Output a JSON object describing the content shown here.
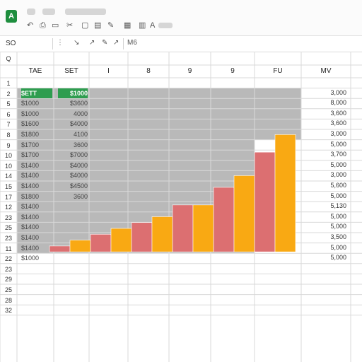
{
  "app": {
    "icon_letter": "A"
  },
  "toolbar": {
    "icons": [
      "undo-icon",
      "print-icon",
      "paint-format-icon",
      "cut-icon",
      "copy-icon",
      "paste-icon",
      "pencil-icon",
      "grid-icon",
      "chart-icon",
      "text-icon"
    ]
  },
  "formula_bar": {
    "name_box": "SO",
    "content": "M6"
  },
  "columns": [
    "TAE",
    "SET",
    "I",
    "8",
    "9",
    "9",
    "FU",
    "MV"
  ],
  "rows": [
    "1",
    "2",
    "5",
    "6",
    "7",
    "8",
    "9",
    "10",
    "10",
    "14",
    "15",
    "17",
    "12",
    "23",
    "25",
    "23",
    "11",
    "22",
    "23",
    "29",
    "25",
    "28",
    "32"
  ],
  "row_zero_label": "Q",
  "col_a": [
    "$ETT",
    "$1000",
    "$1000",
    "$1600",
    "$1800",
    "$1700",
    "$1700",
    "$1400",
    "$1400",
    "$1400",
    "$1800",
    "$1400",
    "$1400",
    "$1400",
    "$1400",
    "$1400",
    "$1000"
  ],
  "col_b": [
    "$1000",
    "$3600",
    "4000",
    "$4000",
    "4100",
    "3600",
    "$7000",
    "$4000",
    "$4000",
    "$4500",
    "3600"
  ],
  "right_values": [
    "3,000",
    "8,000",
    "3,600",
    "3,600",
    "3,000",
    "5,000",
    "3,700",
    "5,000",
    "3,000",
    "5,600",
    "5,000",
    "5,130",
    "5,000",
    "5,000",
    "3,500",
    "5,000",
    "5,000"
  ],
  "colors": {
    "shaded": "#b9b9b9",
    "bar_orange": "#f9a913",
    "bar_red": "#dc6f71",
    "active_cell": "#2e9d4f"
  },
  "chart_data": {
    "type": "bar",
    "values": [
      1,
      2,
      3,
      4,
      5,
      6,
      8,
      8,
      11,
      13,
      17,
      20
    ],
    "colors": [
      "red",
      "orange",
      "red",
      "orange",
      "red",
      "orange",
      "red",
      "orange",
      "red",
      "orange",
      "red",
      "orange"
    ],
    "ylim": [
      0,
      20
    ]
  }
}
